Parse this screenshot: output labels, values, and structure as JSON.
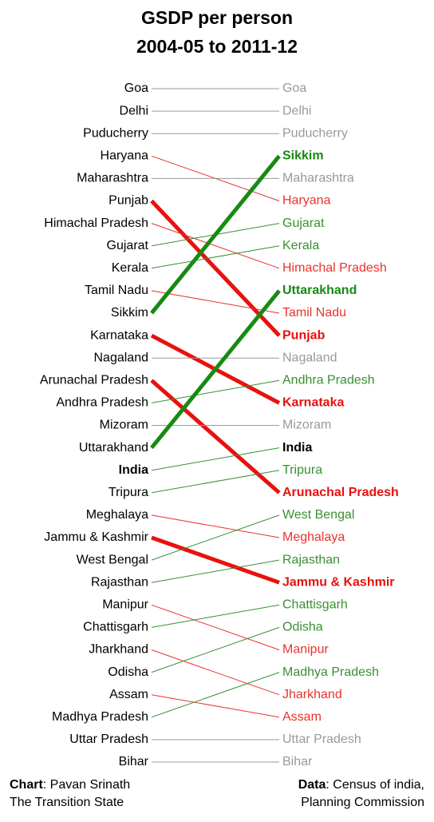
{
  "chart_data": {
    "type": "slope",
    "title": [
      "GSDP per person",
      "2004-05 to 2011-12"
    ],
    "items": [
      {
        "name": "Goa",
        "from": 1,
        "to": 1,
        "color": "#999999"
      },
      {
        "name": "Delhi",
        "from": 2,
        "to": 2,
        "color": "#999999"
      },
      {
        "name": "Puducherry",
        "from": 3,
        "to": 3,
        "color": "#999999"
      },
      {
        "name": "Haryana",
        "from": 4,
        "to": 6,
        "color": "#e8332f"
      },
      {
        "name": "Maharashtra",
        "from": 5,
        "to": 5,
        "color": "#999999"
      },
      {
        "name": "Punjab",
        "from": 6,
        "to": 12,
        "color": "#e8110f",
        "bold": true,
        "thick": true
      },
      {
        "name": "Himachal Pradesh",
        "from": 7,
        "to": 9,
        "color": "#e8332f"
      },
      {
        "name": "Gujarat",
        "from": 8,
        "to": 7,
        "color": "#3a8f34"
      },
      {
        "name": "Kerala",
        "from": 9,
        "to": 8,
        "color": "#3a8f34"
      },
      {
        "name": "Tamil Nadu",
        "from": 10,
        "to": 11,
        "color": "#e8332f"
      },
      {
        "name": "Sikkim",
        "from": 11,
        "to": 4,
        "color": "#168a12",
        "bold": true,
        "thick": true
      },
      {
        "name": "Karnataka",
        "from": 12,
        "to": 15,
        "color": "#e8110f",
        "bold": true,
        "thick": true
      },
      {
        "name": "Nagaland",
        "from": 13,
        "to": 13,
        "color": "#999999"
      },
      {
        "name": "Arunachal Pradesh",
        "from": 14,
        "to": 19,
        "color": "#e8110f",
        "bold": true,
        "thick": true
      },
      {
        "name": "Andhra Pradesh",
        "from": 15,
        "to": 14,
        "color": "#3a8f34"
      },
      {
        "name": "Mizoram",
        "from": 16,
        "to": 16,
        "color": "#999999"
      },
      {
        "name": "Uttarakhand",
        "from": 17,
        "to": 10,
        "color": "#168a12",
        "bold": true,
        "thick": true
      },
      {
        "name": "India",
        "from": 18,
        "to": 17,
        "color": "#3a8f34",
        "bold": true,
        "text_color": "#000000"
      },
      {
        "name": "Tripura",
        "from": 19,
        "to": 18,
        "color": "#3a8f34"
      },
      {
        "name": "Meghalaya",
        "from": 20,
        "to": 21,
        "color": "#e8332f"
      },
      {
        "name": "Jammu & Kashmir",
        "from": 21,
        "to": 23,
        "color": "#e8110f",
        "bold": true,
        "thick": true
      },
      {
        "name": "West Bengal",
        "from": 22,
        "to": 20,
        "color": "#3a8f34"
      },
      {
        "name": "Rajasthan",
        "from": 23,
        "to": 22,
        "color": "#3a8f34"
      },
      {
        "name": "Manipur",
        "from": 24,
        "to": 26,
        "color": "#e8332f"
      },
      {
        "name": "Chattisgarh",
        "from": 25,
        "to": 24,
        "color": "#3a8f34"
      },
      {
        "name": "Jharkhand",
        "from": 26,
        "to": 28,
        "color": "#e8332f"
      },
      {
        "name": "Odisha",
        "from": 27,
        "to": 25,
        "color": "#3a8f34"
      },
      {
        "name": "Assam",
        "from": 28,
        "to": 29,
        "color": "#e8332f"
      },
      {
        "name": "Madhya Pradesh",
        "from": 29,
        "to": 27,
        "color": "#3a8f34"
      },
      {
        "name": "Uttar Pradesh",
        "from": 30,
        "to": 30,
        "color": "#999999"
      },
      {
        "name": "Bihar",
        "from": 31,
        "to": 31,
        "color": "#999999"
      }
    ],
    "credit": {
      "label": "Chart",
      "lines": [
        ": Pavan Srinath",
        "The Transition State"
      ]
    },
    "source": {
      "label": "Data",
      "lines": [
        ": Census of india,",
        "Planning Commission"
      ]
    }
  }
}
